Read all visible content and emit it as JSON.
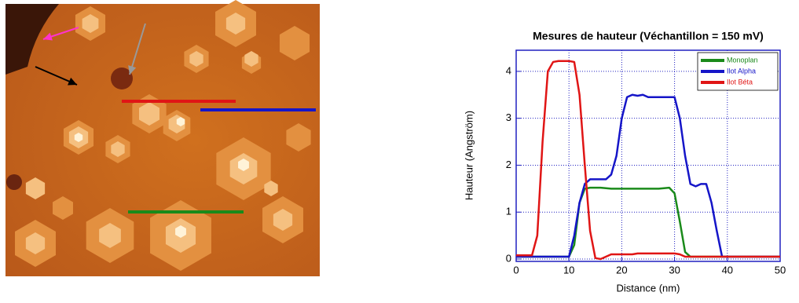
{
  "chart_data": {
    "type": "line",
    "title": "Mesures de hauteur (Véchantillon = 150 mV)",
    "x_label": "Distance  (nm)",
    "y_label": "Hauteur (Angström)",
    "x": [
      0,
      1,
      2,
      3,
      4,
      5,
      6,
      7,
      8,
      9,
      10,
      11,
      12,
      13,
      14,
      15,
      16,
      17,
      18,
      19,
      20,
      21,
      22,
      23,
      24,
      25,
      26,
      27,
      28,
      29,
      30,
      31,
      32,
      33,
      34,
      35,
      36,
      37,
      38,
      39,
      40,
      41,
      42,
      43,
      44,
      45,
      46,
      47,
      48,
      49,
      50
    ],
    "series": [
      {
        "name": "Monoplan",
        "color": "#1a8a1a",
        "values": [
          0.05,
          0.05,
          0.05,
          0.05,
          0.05,
          0.05,
          0.05,
          0.05,
          0.05,
          0.05,
          0.05,
          0.3,
          1.2,
          1.5,
          1.52,
          1.52,
          1.52,
          1.51,
          1.5,
          1.5,
          1.5,
          1.5,
          1.5,
          1.5,
          1.5,
          1.5,
          1.5,
          1.5,
          1.51,
          1.52,
          1.4,
          0.8,
          0.15,
          0.05,
          0.05,
          0.05,
          0.05,
          0.05,
          0.05,
          0.05,
          0.05,
          0.05,
          0.05,
          0.05,
          0.05,
          0.05,
          0.05,
          0.05,
          0.05,
          0.05,
          0.05
        ]
      },
      {
        "name": "Ilot Alpha",
        "color": "#1515c8",
        "values": [
          0.05,
          0.05,
          0.05,
          0.05,
          0.05,
          0.05,
          0.05,
          0.05,
          0.05,
          0.05,
          0.05,
          0.5,
          1.2,
          1.6,
          1.7,
          1.7,
          1.7,
          1.7,
          1.8,
          2.2,
          3.0,
          3.45,
          3.5,
          3.48,
          3.5,
          3.45,
          3.45,
          3.45,
          3.45,
          3.45,
          3.45,
          3.0,
          2.2,
          1.6,
          1.55,
          1.6,
          1.6,
          1.2,
          0.6,
          0.05,
          0.05,
          0.05,
          0.05,
          0.05,
          0.05,
          0.05,
          0.05,
          0.05,
          0.05,
          0.05,
          0.05
        ]
      },
      {
        "name": "Ilot Béta",
        "color": "#e01515",
        "values": [
          0.08,
          0.08,
          0.08,
          0.08,
          0.5,
          2.5,
          4.0,
          4.2,
          4.22,
          4.22,
          4.22,
          4.2,
          3.5,
          2.0,
          0.6,
          0.02,
          0.0,
          0.05,
          0.1,
          0.1,
          0.1,
          0.1,
          0.1,
          0.12,
          0.12,
          0.12,
          0.12,
          0.12,
          0.12,
          0.12,
          0.12,
          0.1,
          0.05,
          0.05,
          0.05,
          0.05,
          0.05,
          0.05,
          0.05,
          0.05,
          0.05,
          0.05,
          0.05,
          0.05,
          0.05,
          0.05,
          0.05,
          0.05,
          0.05,
          0.05,
          0.05
        ]
      }
    ],
    "xlim": [
      0,
      50
    ],
    "xticks": [
      0,
      10,
      20,
      30,
      40,
      50
    ],
    "ylim": [
      -0.05,
      4.45
    ],
    "yticks": [
      0,
      1,
      2,
      3,
      4
    ],
    "grid": true,
    "legend": "upper right"
  }
}
